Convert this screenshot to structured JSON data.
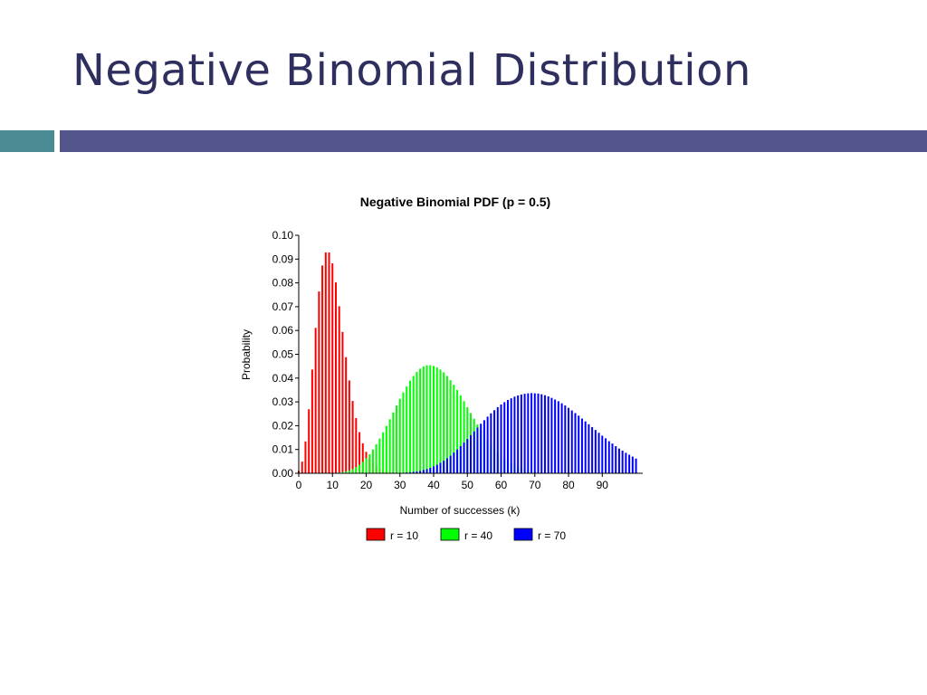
{
  "slide": {
    "title": "Negative Binomial Distribution",
    "accent_colors": {
      "teal": "#4a8a92",
      "indigo": "#54558a"
    }
  },
  "chart_data": {
    "type": "bar",
    "title": "Negative Binomial PDF (p = 0.5)",
    "xlabel": "Number of successes (k)",
    "ylabel": "Probability",
    "xlim": [
      0,
      102
    ],
    "ylim": [
      0,
      0.1
    ],
    "x_ticks": [
      0,
      10,
      20,
      30,
      40,
      50,
      60,
      70,
      80,
      90
    ],
    "y_ticks": [
      0.0,
      0.01,
      0.02,
      0.03,
      0.04,
      0.05,
      0.06,
      0.07,
      0.08,
      0.09,
      0.1
    ],
    "grid": false,
    "legend_position": "bottom",
    "x": [
      0,
      1,
      2,
      3,
      4,
      5,
      6,
      7,
      8,
      9,
      10,
      11,
      12,
      13,
      14,
      15,
      16,
      17,
      18,
      19,
      20,
      21,
      22,
      23,
      24,
      25,
      26,
      27,
      28,
      29,
      30,
      31,
      32,
      33,
      34,
      35,
      36,
      37,
      38,
      39,
      40,
      41,
      42,
      43,
      44,
      45,
      46,
      47,
      48,
      49,
      50,
      51,
      52,
      53,
      54,
      55,
      56,
      57,
      58,
      59,
      60,
      61,
      62,
      63,
      64,
      65,
      66,
      67,
      68,
      69,
      70,
      71,
      72,
      73,
      74,
      75,
      76,
      77,
      78,
      79,
      80,
      81,
      82,
      83,
      84,
      85,
      86,
      87,
      88,
      89,
      90,
      91,
      92,
      93,
      94,
      95,
      96,
      97,
      98,
      99,
      100
    ],
    "series": [
      {
        "name": "r = 10",
        "color": "#ff0000",
        "values": [
          0.001,
          0.0049,
          0.0134,
          0.0269,
          0.0436,
          0.0611,
          0.0764,
          0.0873,
          0.0928,
          0.0928,
          0.0882,
          0.0802,
          0.0702,
          0.0594,
          0.0488,
          0.039,
          0.0304,
          0.0232,
          0.0173,
          0.0126,
          0.009,
          0.0063,
          0.0044,
          0.003,
          0.002,
          0.0013,
          0.0009,
          0.0006,
          0.0004,
          0.0002,
          0.0002,
          0.0001,
          0.0001,
          0,
          0,
          0,
          0,
          0,
          0,
          0,
          0,
          0,
          0,
          0,
          0,
          0,
          0,
          0,
          0,
          0,
          0,
          0,
          0,
          0,
          0,
          0,
          0,
          0,
          0,
          0,
          0,
          0,
          0,
          0,
          0,
          0,
          0,
          0,
          0,
          0,
          0,
          0,
          0,
          0,
          0,
          0,
          0,
          0,
          0,
          0,
          0,
          0,
          0,
          0,
          0,
          0,
          0,
          0,
          0,
          0,
          0,
          0,
          0,
          0,
          0,
          0,
          0,
          0,
          0,
          0,
          0
        ]
      },
      {
        "name": "r = 40",
        "color": "#00ff00",
        "values": [
          0,
          0,
          0,
          0,
          0,
          0,
          0,
          0,
          0,
          0,
          0.0001,
          0.0002,
          0.0003,
          0.0005,
          0.0008,
          0.0012,
          0.0018,
          0.0026,
          0.0036,
          0.0048,
          0.0063,
          0.008,
          0.01,
          0.0122,
          0.0146,
          0.0172,
          0.0199,
          0.0227,
          0.0256,
          0.0285,
          0.0313,
          0.034,
          0.0365,
          0.0389,
          0.0409,
          0.0426,
          0.044,
          0.0449,
          0.0454,
          0.0454,
          0.0451,
          0.0445,
          0.0436,
          0.0424,
          0.0409,
          0.0391,
          0.0372,
          0.035,
          0.0327,
          0.0303,
          0.0278,
          0.0253,
          0.0229,
          0.0205,
          0.0182,
          0.016,
          0.0139,
          0.012,
          0.0103,
          0.0087,
          0.0073,
          0.0061,
          0.005,
          0.0041,
          0.0033,
          0.0027,
          0.0021,
          0.0017,
          0.0013,
          0.001,
          0.0008,
          0.0006,
          0.0005,
          0.0003,
          0.0002,
          0.0002,
          0.0001,
          0.0001,
          0,
          0,
          0,
          0,
          0,
          0,
          0,
          0,
          0,
          0,
          0,
          0,
          0,
          0,
          0,
          0,
          0,
          0,
          0,
          0,
          0,
          0,
          0
        ]
      },
      {
        "name": "r = 70",
        "color": "#0000ff",
        "values": [
          0,
          0,
          0,
          0,
          0,
          0,
          0,
          0,
          0,
          0,
          0,
          0,
          0,
          0,
          0,
          0,
          0,
          0,
          0,
          0,
          0,
          0,
          0,
          0,
          0,
          0,
          0,
          0,
          0,
          0.0001,
          0.0001,
          0.0002,
          0.0003,
          0.0004,
          0.0006,
          0.0008,
          0.001,
          0.0014,
          0.0018,
          0.0023,
          0.0029,
          0.0036,
          0.0044,
          0.0053,
          0.0063,
          0.0074,
          0.0087,
          0.01,
          0.0114,
          0.0129,
          0.0144,
          0.016,
          0.0176,
          0.0192,
          0.0208,
          0.0223,
          0.0238,
          0.0252,
          0.0265,
          0.0278,
          0.0289,
          0.0299,
          0.0308,
          0.0315,
          0.0322,
          0.0327,
          0.0331,
          0.0334,
          0.0336,
          0.0337,
          0.0336,
          0.0335,
          0.0332,
          0.0328,
          0.0323,
          0.0317,
          0.031,
          0.0303,
          0.0294,
          0.0285,
          0.0275,
          0.0264,
          0.0253,
          0.0242,
          0.023,
          0.0218,
          0.0206,
          0.0194,
          0.0182,
          0.017,
          0.0158,
          0.0147,
          0.0135,
          0.0125,
          0.0114,
          0.0104,
          0.0095,
          0.0086,
          0.0078,
          0.007,
          0.0062
        ]
      }
    ]
  }
}
